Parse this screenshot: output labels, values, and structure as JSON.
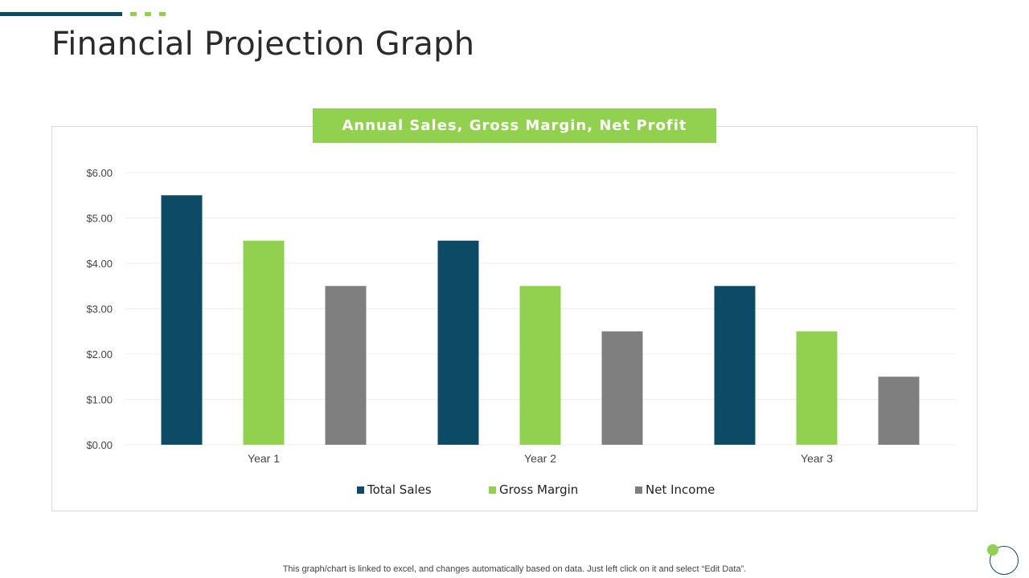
{
  "page": {
    "title": "Financial Projection Graph",
    "footnote": "This graph/chart is linked to excel, and changes automatically based on data. Just left click on it and select “Edit Data”."
  },
  "colors": {
    "accent_dark": "#0d4a66",
    "accent_green": "#92d050",
    "gray": "#7f7f7f"
  },
  "chart_data": {
    "type": "bar",
    "title": "Annual Sales, Gross Margin, Net Profit",
    "categories": [
      "Year 1",
      "Year 2",
      "Year 3"
    ],
    "series": [
      {
        "name": "Total Sales",
        "values": [
          5.5,
          4.5,
          3.5
        ],
        "color": "#0d4a66"
      },
      {
        "name": "Gross Margin",
        "values": [
          4.5,
          3.5,
          2.5
        ],
        "color": "#92d050"
      },
      {
        "name": "Net Income",
        "values": [
          3.5,
          2.5,
          1.5
        ],
        "color": "#7f7f7f"
      }
    ],
    "y_ticks": [
      "$0.00",
      "$1.00",
      "$2.00",
      "$3.00",
      "$4.00",
      "$5.00",
      "$6.00"
    ],
    "ylim": [
      0,
      6
    ],
    "xlabel": "",
    "ylabel": "",
    "grid": true,
    "legend_position": "bottom"
  }
}
